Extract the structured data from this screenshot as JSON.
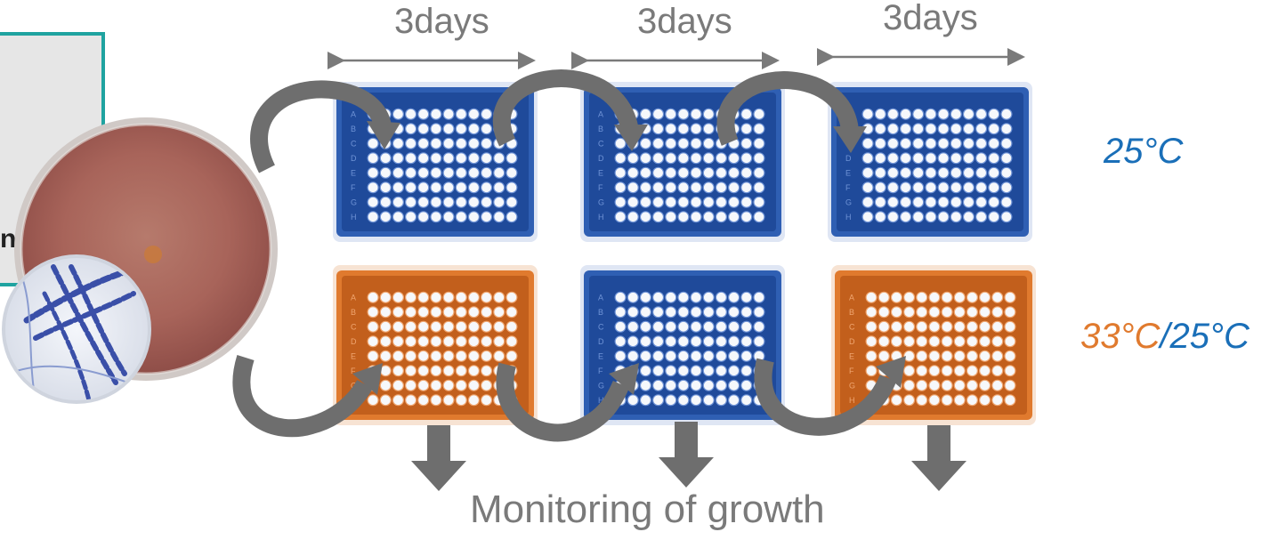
{
  "interval_labels": [
    "3days",
    "3days",
    "3days"
  ],
  "row_temperatures": {
    "row1": "25°C",
    "row2_part1": "33°C",
    "row2_sep": "/",
    "row2_part2": "25°C"
  },
  "caption": "Monitoring of growth",
  "left_box_partial_text": "n",
  "plate_rows": [
    "A",
    "B",
    "C",
    "D",
    "E",
    "F",
    "G",
    "H"
  ],
  "plate_columns": 12,
  "plate_colors": [
    [
      "blue",
      "blue",
      "blue"
    ],
    [
      "orange",
      "blue",
      "orange"
    ]
  ],
  "colors": {
    "blue_plate": "#2f5fb3",
    "orange_plate": "#e07a2e",
    "temp_blue": "#1a6fb8",
    "temp_orange": "#e07a2e",
    "arrow_gray": "#6e6e6e",
    "box_border": "#1fa3a0",
    "box_fill": "#e6e6e6",
    "text_gray": "#7a7a7a"
  }
}
